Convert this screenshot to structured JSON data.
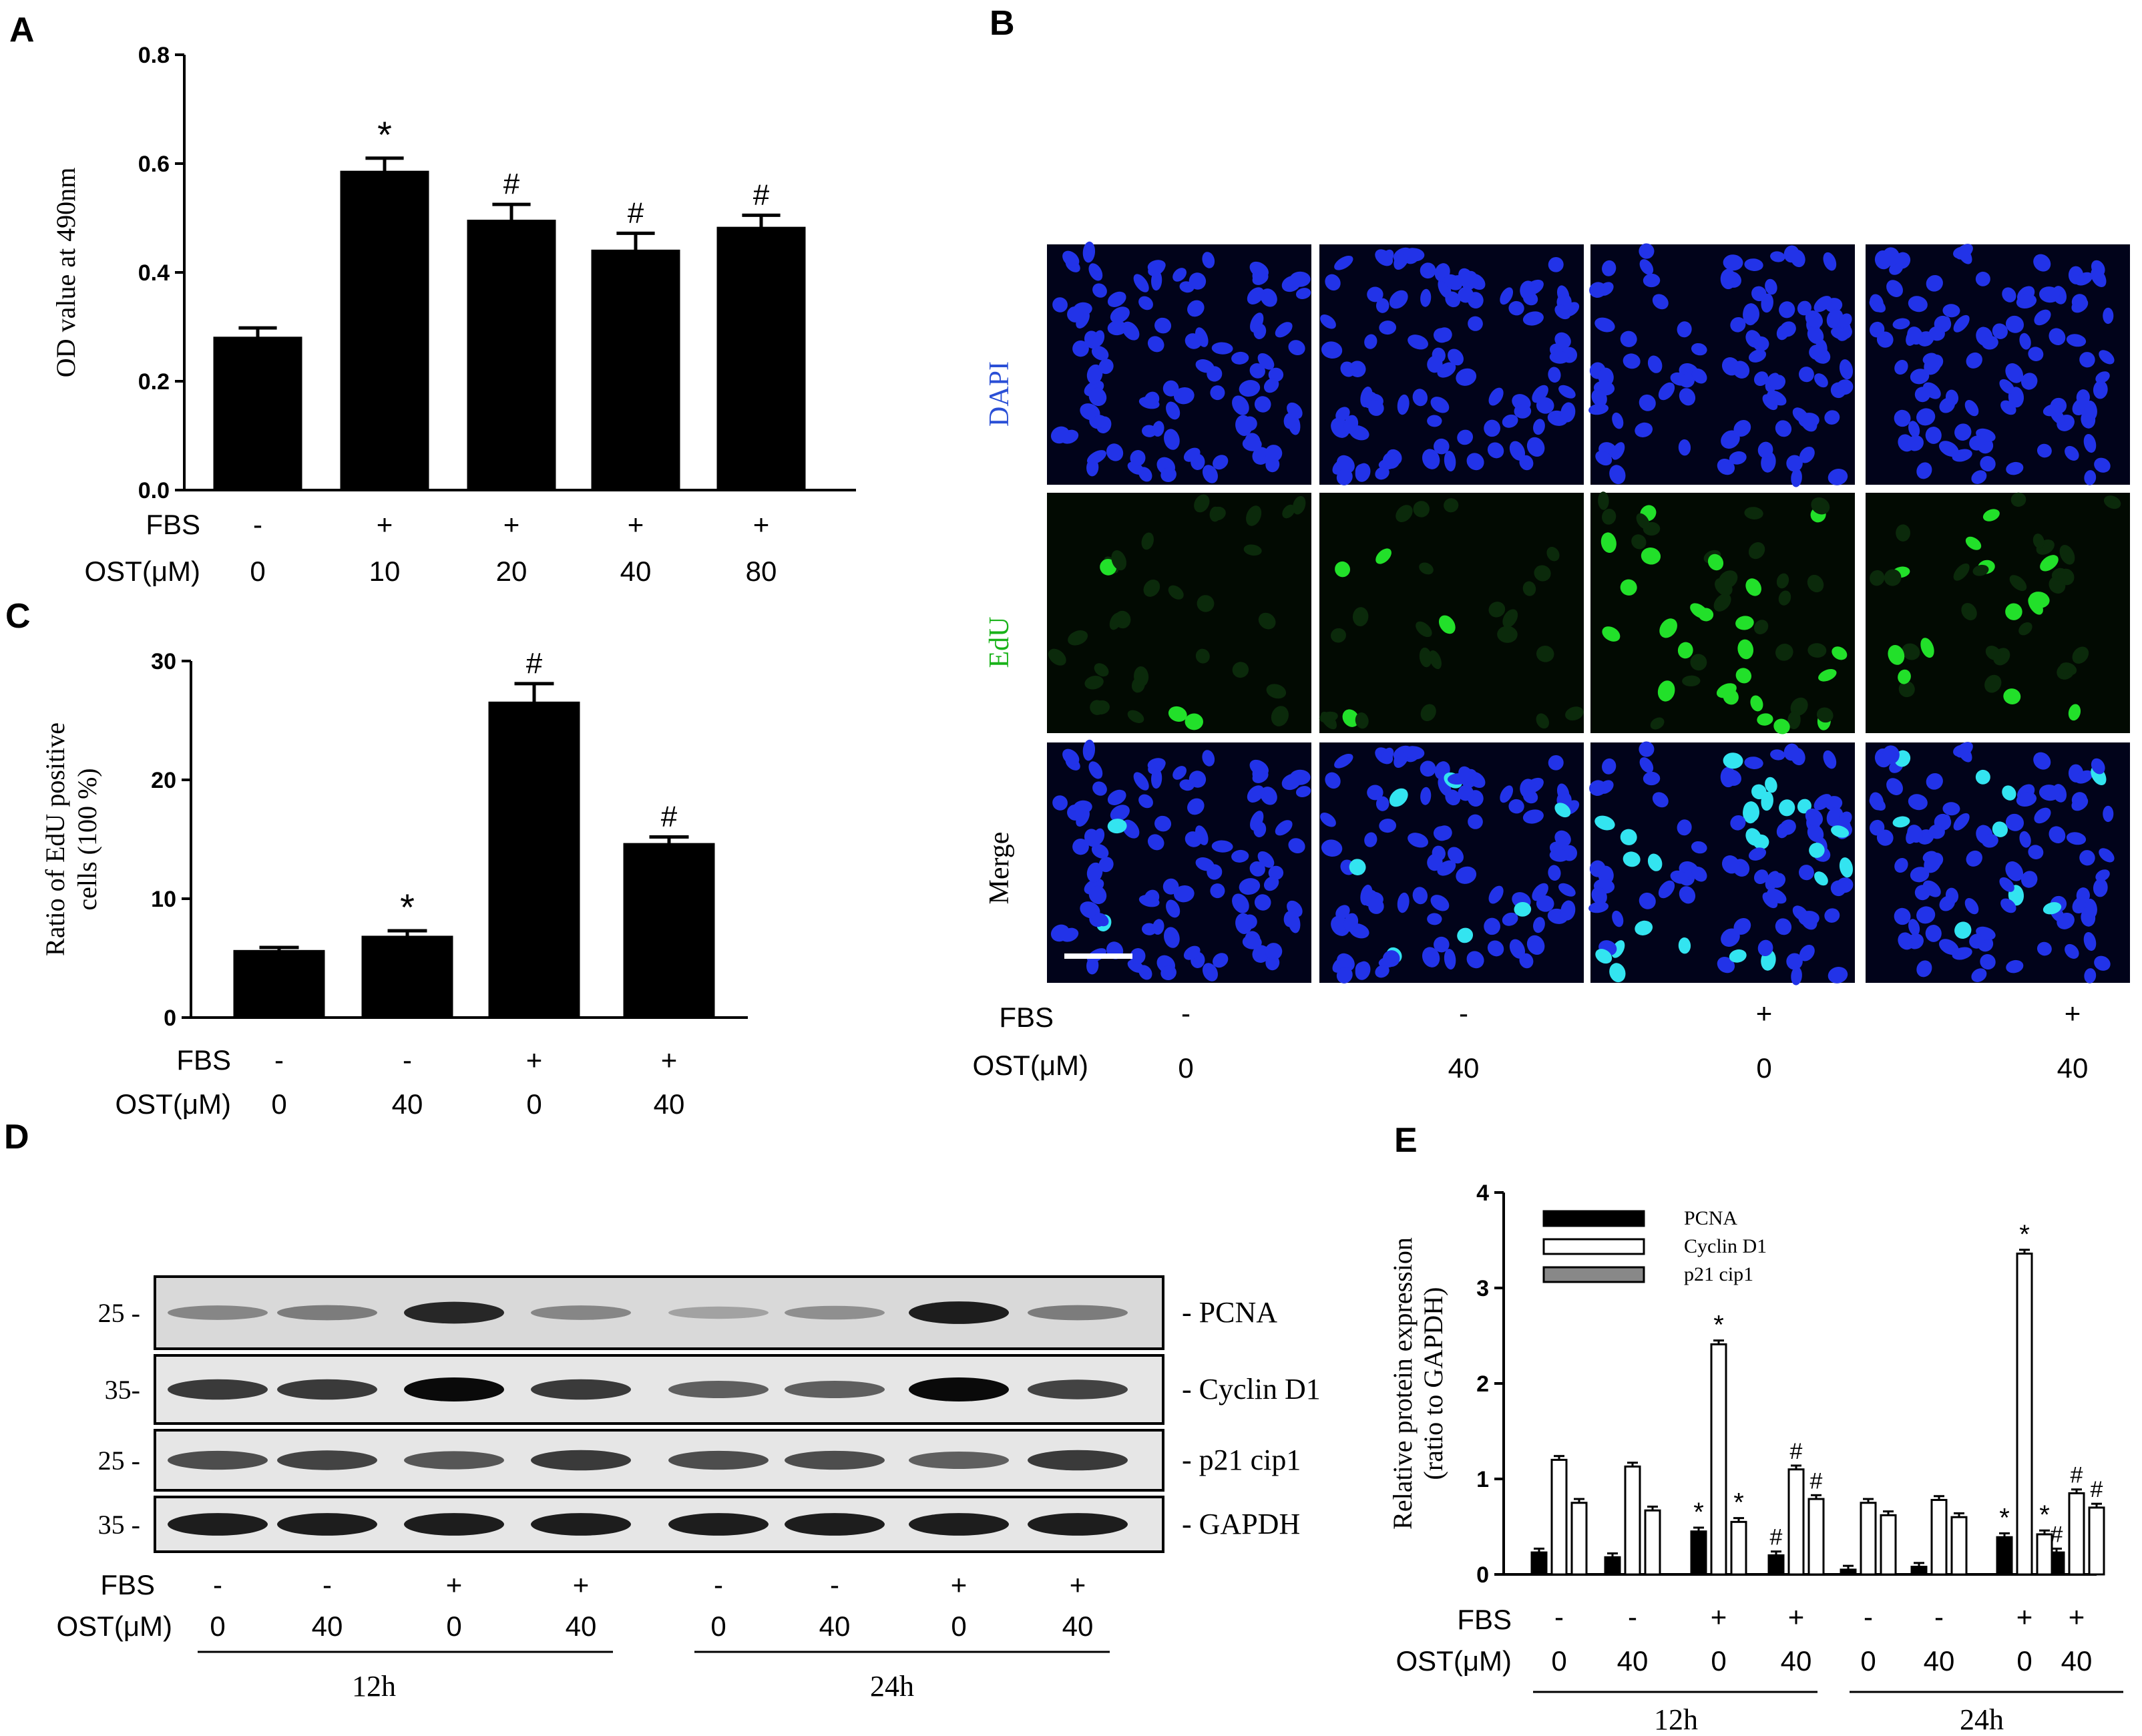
{
  "panel_labels": {
    "a": "A",
    "b": "B",
    "c": "C",
    "d": "D",
    "e": "E"
  },
  "chart_data": [
    {
      "id": "A",
      "type": "bar",
      "ylabel": "OD value at 490nm",
      "ylim": [
        0,
        0.8
      ],
      "yticks": [
        "0.0",
        "0.2",
        "0.4",
        "0.6",
        "0.8"
      ],
      "row_labels": [
        "FBS",
        "OST(μM)"
      ],
      "fbs": [
        "-",
        "+",
        "+",
        "+",
        "+"
      ],
      "ost": [
        "0",
        "10",
        "20",
        "40",
        "80"
      ],
      "values": [
        0.28,
        0.585,
        0.495,
        0.44,
        0.482
      ],
      "errors": [
        0.018,
        0.025,
        0.03,
        0.032,
        0.023
      ],
      "annotations": [
        "",
        "*",
        "#",
        "#",
        "#"
      ],
      "color": "#000000"
    },
    {
      "id": "C",
      "type": "bar",
      "ylabel": "Ratio of  EdU positive cells (100 %)",
      "ylim": [
        0,
        30
      ],
      "yticks": [
        "0",
        "10",
        "20",
        "30"
      ],
      "row_labels": [
        "FBS",
        "OST(μM)"
      ],
      "fbs": [
        "-",
        "-",
        "+",
        "+"
      ],
      "ost": [
        "0",
        "40",
        "0",
        "40"
      ],
      "values": [
        5.6,
        6.8,
        26.5,
        14.6
      ],
      "errors": [
        0.3,
        0.5,
        1.6,
        0.6
      ],
      "annotations": [
        "",
        "*",
        "#",
        "#"
      ],
      "color": "#000000"
    },
    {
      "id": "E",
      "type": "bar",
      "ylabel": "Relative protein expression (ratio to GAPDH)",
      "ylim": [
        0,
        4
      ],
      "yticks": [
        "0",
        "1",
        "2",
        "3",
        "4"
      ],
      "row_labels": [
        "FBS",
        "OST(μM)"
      ],
      "fbs": [
        "-",
        "-",
        "+",
        "+",
        "-",
        "-",
        "+",
        "+"
      ],
      "ost": [
        "0",
        "40",
        "0",
        "40",
        "0",
        "40",
        "0",
        "40"
      ],
      "groups": [
        "12h",
        "24h"
      ],
      "series": [
        {
          "name": "PCNA",
          "color": "#000000",
          "values": [
            0.23,
            0.18,
            0.45,
            0.2,
            0.05,
            0.08,
            0.39,
            0.23
          ],
          "annotations": [
            "",
            "",
            "*",
            "#",
            "",
            "",
            "*",
            "#"
          ]
        },
        {
          "name": "Cyclin D1",
          "color": "#ffffff",
          "values": [
            1.2,
            1.13,
            2.41,
            1.1,
            0.75,
            0.78,
            3.36,
            0.85
          ],
          "annotations": [
            "",
            "",
            "*",
            "#",
            "",
            "",
            "*",
            "#"
          ]
        },
        {
          "name": "p21 cip1",
          "color": "#ffffff",
          "values": [
            0.75,
            0.67,
            0.55,
            0.79,
            0.62,
            0.6,
            0.42,
            0.7
          ],
          "annotations": [
            "",
            "",
            "*",
            "#",
            "",
            "",
            "*",
            "#"
          ]
        }
      ]
    }
  ],
  "panel_b": {
    "row_labels": [
      "DAPI",
      "EdU",
      "Merge"
    ],
    "row_colors": [
      "#2a4fd6",
      "#19b319",
      "#000000"
    ],
    "fbs_label": "FBS",
    "ost_label": "OST(μM)",
    "fbs": [
      "-",
      "-",
      "+",
      "+"
    ],
    "ost": [
      "0",
      "40",
      "0",
      "40"
    ],
    "edu_fraction": [
      0.05,
      0.06,
      0.28,
      0.15
    ]
  },
  "panel_d": {
    "bands": [
      {
        "name": "- PCNA",
        "marker": "25 -"
      },
      {
        "name": "- Cyclin D1",
        "marker": "35-"
      },
      {
        "name": "- p21 cip1",
        "marker": "25 -"
      },
      {
        "name": "- GAPDH",
        "marker": "35 -"
      }
    ],
    "intensity": [
      [
        0.35,
        0.4,
        0.85,
        0.35,
        0.2,
        0.3,
        0.9,
        0.4
      ],
      [
        0.75,
        0.75,
        1.0,
        0.75,
        0.55,
        0.55,
        1.0,
        0.7
      ],
      [
        0.65,
        0.7,
        0.6,
        0.75,
        0.65,
        0.65,
        0.55,
        0.75
      ],
      [
        0.9,
        0.9,
        0.9,
        0.9,
        0.9,
        0.9,
        0.9,
        0.9
      ]
    ],
    "fbs_label": "FBS",
    "ost_label": "OST(μM)",
    "fbs": [
      "-",
      "-",
      "+",
      "+",
      "-",
      "-",
      "+",
      "+"
    ],
    "ost": [
      "0",
      "40",
      "0",
      "40",
      "0",
      "40",
      "0",
      "40"
    ],
    "groups": [
      "12h",
      "24h"
    ]
  }
}
